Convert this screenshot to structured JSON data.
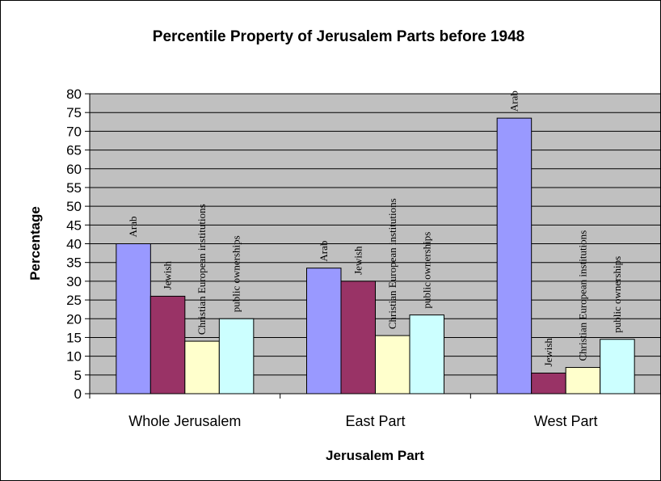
{
  "chart_data": {
    "type": "bar",
    "title": "Percentile Property of Jerusalem Parts before 1948",
    "xlabel": "Jerusalem Part",
    "ylabel": "Percentage",
    "ylim": [
      0,
      80
    ],
    "ytick_step": 5,
    "grid": true,
    "plot_background": "#c0c0c0",
    "categories": [
      "Whole Jerusalem",
      "East Part",
      "West Part"
    ],
    "series": [
      {
        "name": "Arab",
        "color": "#9999ff",
        "values": [
          40,
          33.5,
          73.5
        ]
      },
      {
        "name": "Jewish",
        "color": "#993366",
        "values": [
          26,
          30,
          5.5
        ]
      },
      {
        "name": "Christian European institutions",
        "color": "#ffffcc",
        "values": [
          14,
          15.5,
          7
        ]
      },
      {
        "name": "public ownerships",
        "color": "#ccffff",
        "values": [
          20,
          21,
          14.5
        ]
      }
    ]
  }
}
